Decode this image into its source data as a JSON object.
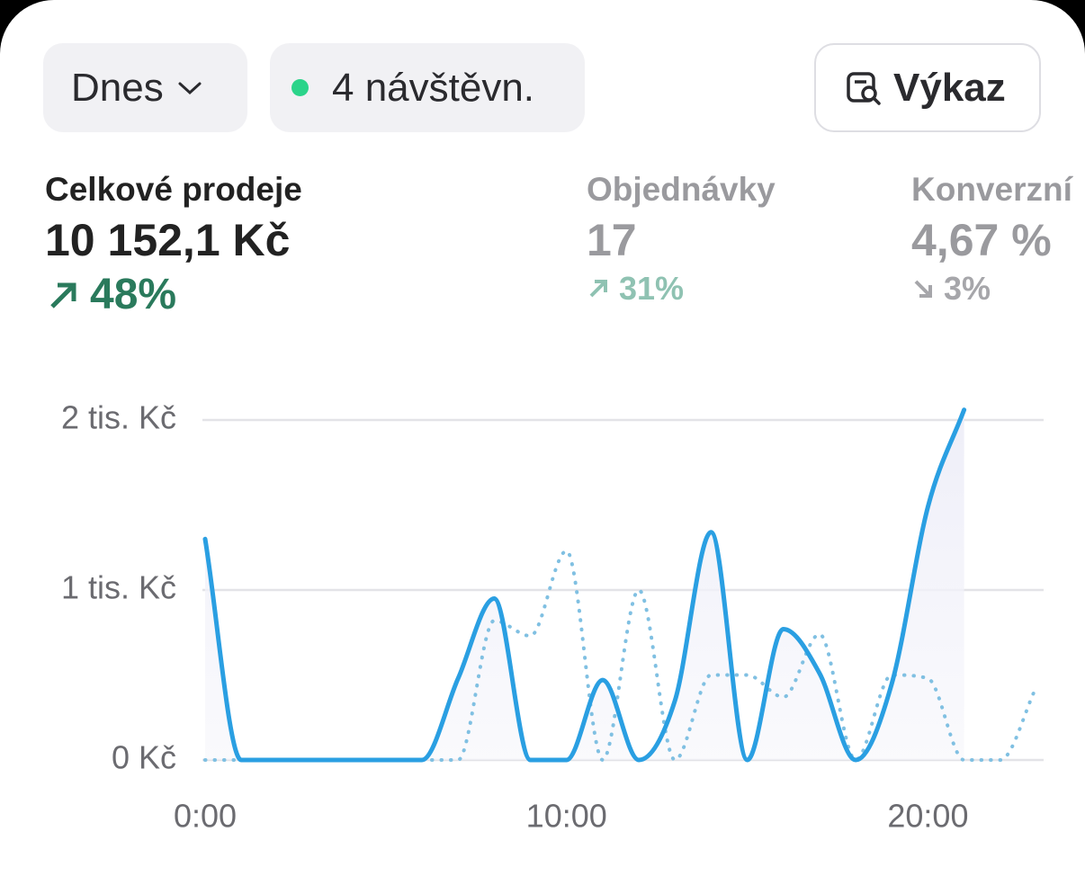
{
  "header": {
    "period": "Dnes",
    "visitors": "4 návštěvn.",
    "report": "Výkaz"
  },
  "metrics": [
    {
      "label": "Celkové prodeje",
      "value": "10 152,1 Kč",
      "change": "48%"
    },
    {
      "label": "Objednávky",
      "value": "17",
      "change": "31%"
    },
    {
      "label": "Konverzní",
      "value": "4,67 %",
      "change": "3%"
    }
  ],
  "chart_data": {
    "type": "line",
    "x": [
      0,
      1,
      2,
      3,
      4,
      5,
      6,
      7,
      8,
      9,
      10,
      11,
      12,
      13,
      14,
      15,
      16,
      17,
      18,
      19,
      20,
      21,
      22,
      23
    ],
    "xlim": [
      0,
      23.2
    ],
    "xticks": [
      {
        "value": 0,
        "label": "0:00"
      },
      {
        "value": 10,
        "label": "10:00"
      },
      {
        "value": 20,
        "label": "20:00"
      }
    ],
    "ylim": [
      0,
      2000
    ],
    "yticks": [
      {
        "value": 0,
        "label": "0 Kč"
      },
      {
        "value": 1000,
        "label": "1 tis. Kč"
      },
      {
        "value": 2000,
        "label": "2 tis. Kč"
      }
    ],
    "grid": true,
    "series": [
      {
        "color": "#2a9fe2",
        "style": "solid",
        "area": true,
        "values": [
          1300,
          0,
          0,
          0,
          0,
          0,
          0,
          480,
          950,
          0,
          0,
          470,
          0,
          350,
          1340,
          0,
          770,
          510,
          0,
          450,
          1490,
          2060,
          null,
          null
        ]
      },
      {
        "color": "#80c0e2",
        "style": "dotted",
        "area": false,
        "values": [
          0,
          0,
          0,
          0,
          0,
          0,
          0,
          0,
          820,
          730,
          1230,
          0,
          1000,
          0,
          500,
          500,
          370,
          740,
          0,
          500,
          480,
          0,
          0,
          430
        ]
      }
    ]
  }
}
